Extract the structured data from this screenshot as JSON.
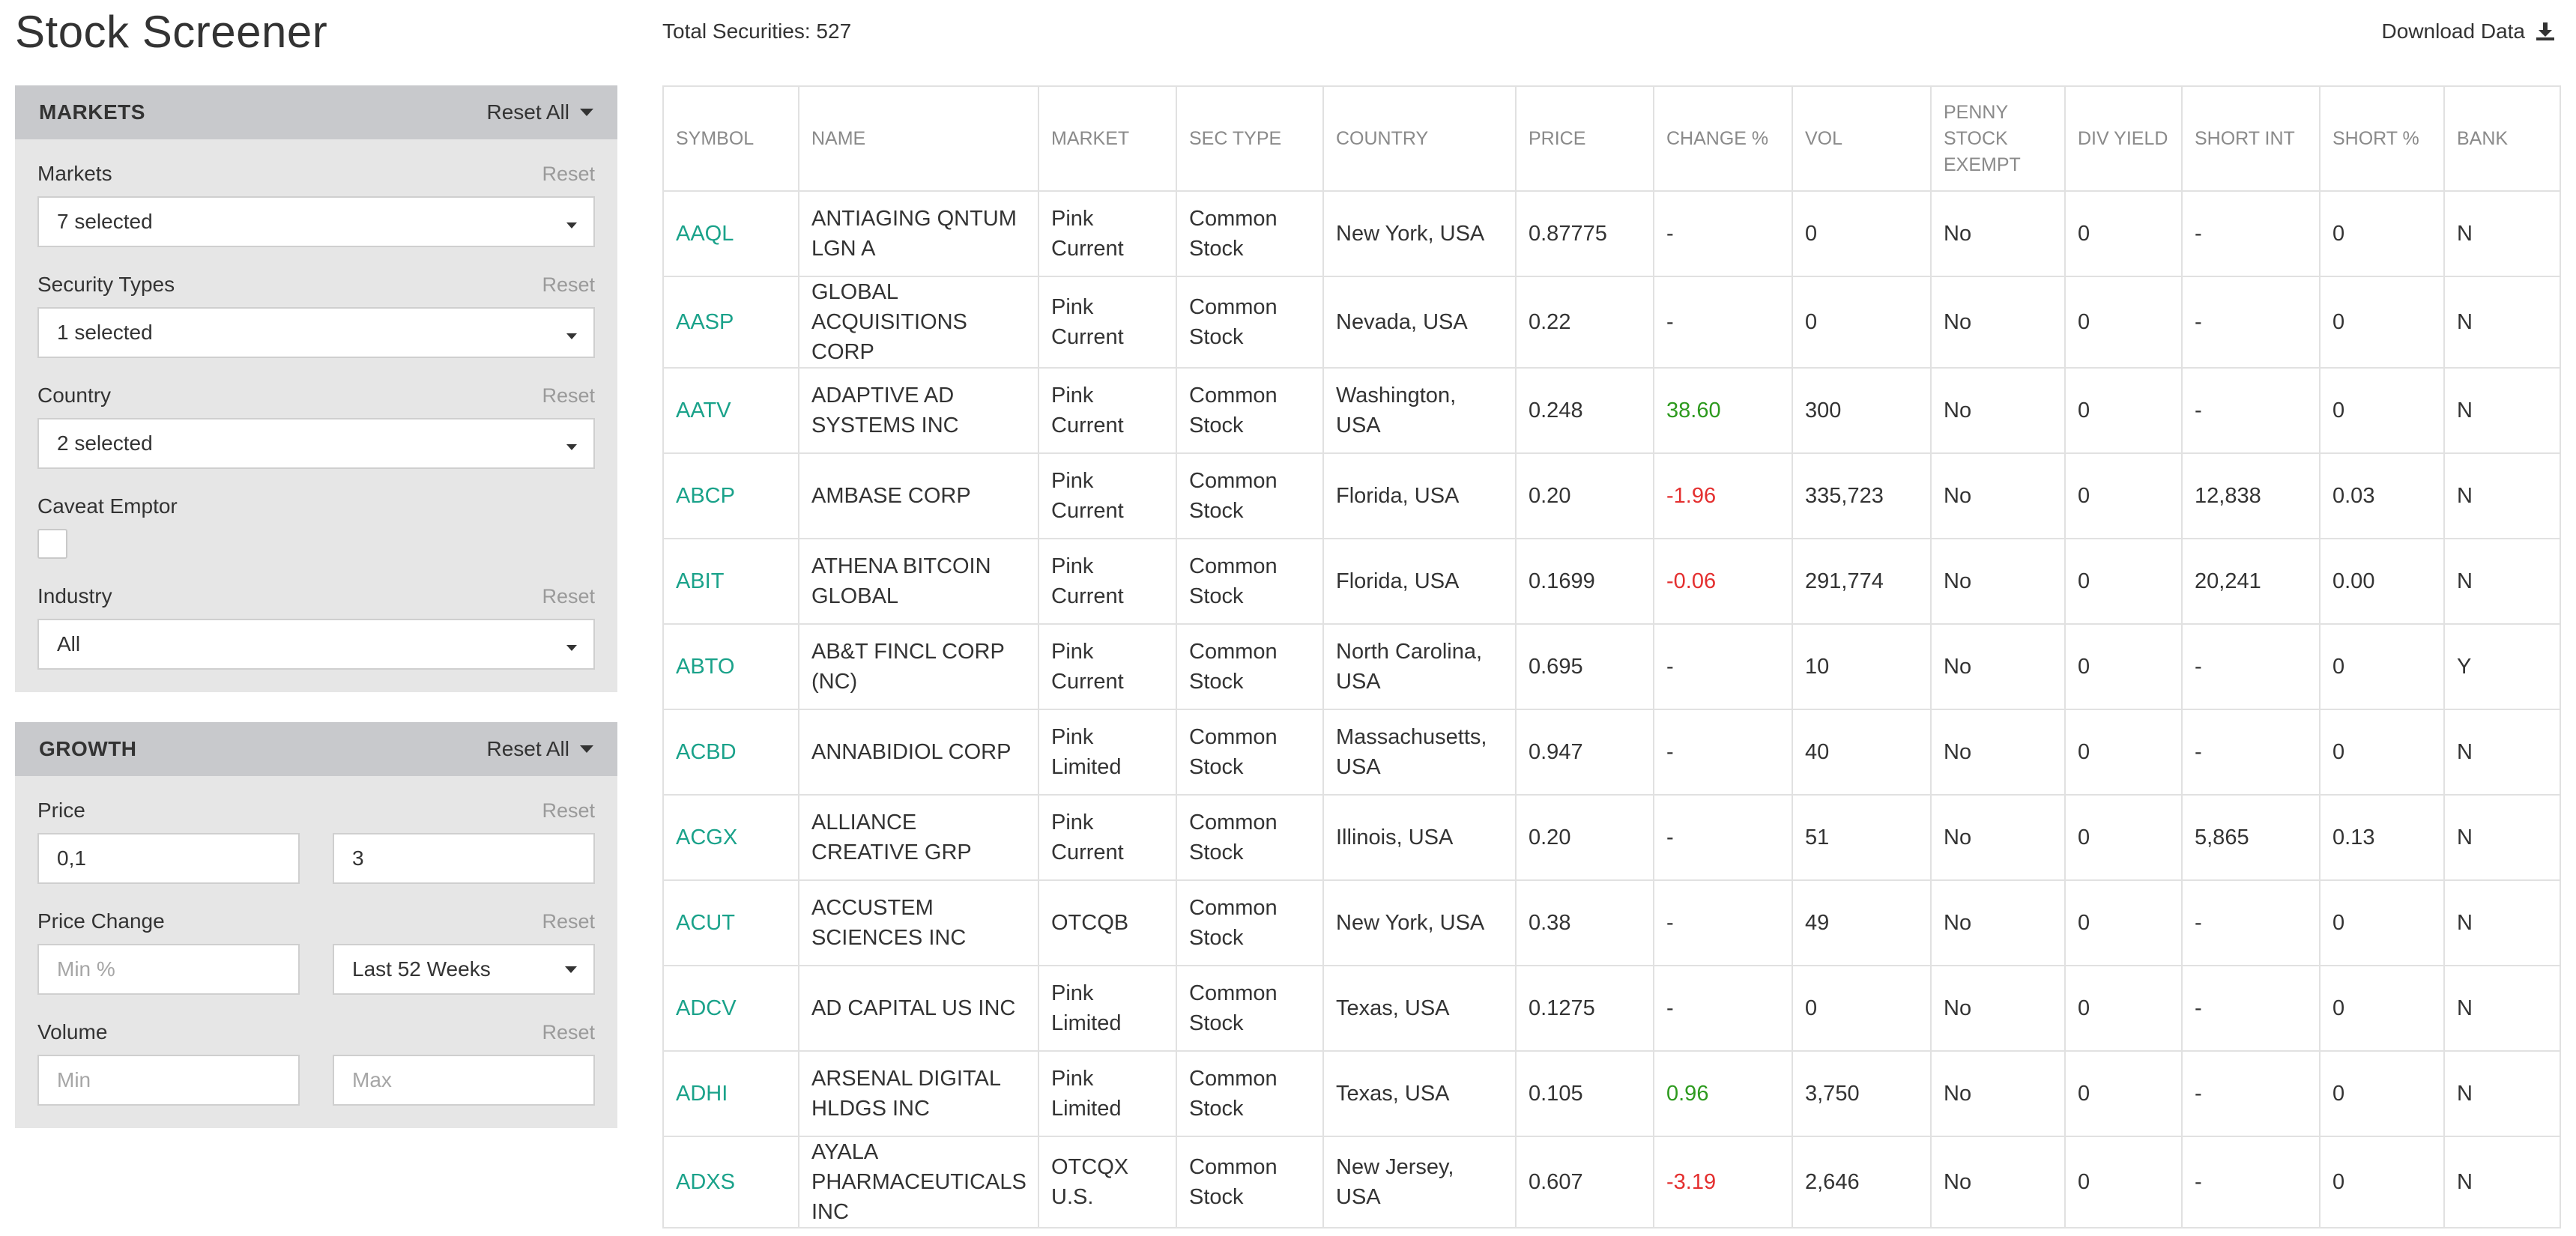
{
  "page_title": "Stock Screener",
  "total_label": "Total Securities: 527",
  "download_label": "Download Data",
  "colors": {
    "symbol": "#1aa28a",
    "positive": "#2d9a1e",
    "negative": "#e42f2f",
    "panel_header": "#c8c9cc",
    "panel_bg": "#e6e6e6"
  },
  "markets_panel": {
    "title": "MARKETS",
    "reset_all": "Reset All",
    "markets": {
      "label": "Markets",
      "reset": "Reset",
      "value": "7 selected"
    },
    "security_types": {
      "label": "Security Types",
      "reset": "Reset",
      "value": "1 selected"
    },
    "country": {
      "label": "Country",
      "reset": "Reset",
      "value": "2 selected"
    },
    "caveat_emptor": {
      "label": "Caveat Emptor",
      "checked": false
    },
    "industry": {
      "label": "Industry",
      "reset": "Reset",
      "value": "All"
    }
  },
  "growth_panel": {
    "title": "GROWTH",
    "reset_all": "Reset All",
    "price": {
      "label": "Price",
      "reset": "Reset",
      "min_value": "0,1",
      "max_value": "3"
    },
    "price_change": {
      "label": "Price Change",
      "reset": "Reset",
      "min_placeholder": "Min %",
      "period": "Last 52 Weeks"
    },
    "volume": {
      "label": "Volume",
      "reset": "Reset",
      "min_placeholder": "Min",
      "max_placeholder": "Max"
    }
  },
  "table": {
    "headers": [
      "SYMBOL",
      "NAME",
      "MARKET",
      "SEC TYPE",
      "COUNTRY",
      "PRICE",
      "CHANGE %",
      "VOL",
      "PENNY STOCK EXEMPT",
      "DIV YIELD",
      "SHORT INT",
      "SHORT %",
      "BANK"
    ],
    "rows": [
      {
        "symbol": "AAQL",
        "name": "ANTIAGING QNTUM LGN A",
        "market": "Pink Current",
        "sec_type": "Common Stock",
        "country": "New York, USA",
        "price": "0.87775",
        "change": "-",
        "change_dir": "none",
        "vol": "0",
        "penny": "No",
        "div": "0",
        "short_int": "-",
        "short_pct": "0",
        "bank": "N"
      },
      {
        "symbol": "AASP",
        "name": "GLOBAL ACQUISITIONS CORP",
        "market": "Pink Current",
        "sec_type": "Common Stock",
        "country": "Nevada, USA",
        "price": "0.22",
        "change": "-",
        "change_dir": "none",
        "vol": "0",
        "penny": "No",
        "div": "0",
        "short_int": "-",
        "short_pct": "0",
        "bank": "N"
      },
      {
        "symbol": "AATV",
        "name": "ADAPTIVE AD SYSTEMS INC",
        "market": "Pink Current",
        "sec_type": "Common Stock",
        "country": "Washington, USA",
        "price": "0.248",
        "change": "38.60",
        "change_dir": "pos",
        "vol": "300",
        "penny": "No",
        "div": "0",
        "short_int": "-",
        "short_pct": "0",
        "bank": "N"
      },
      {
        "symbol": "ABCP",
        "name": "AMBASE CORP",
        "market": "Pink Current",
        "sec_type": "Common Stock",
        "country": "Florida, USA",
        "price": "0.20",
        "change": "-1.96",
        "change_dir": "neg",
        "vol": "335,723",
        "penny": "No",
        "div": "0",
        "short_int": "12,838",
        "short_pct": "0.03",
        "bank": "N"
      },
      {
        "symbol": "ABIT",
        "name": "ATHENA BITCOIN GLOBAL",
        "market": "Pink Current",
        "sec_type": "Common Stock",
        "country": "Florida, USA",
        "price": "0.1699",
        "change": "-0.06",
        "change_dir": "neg",
        "vol": "291,774",
        "penny": "No",
        "div": "0",
        "short_int": "20,241",
        "short_pct": "0.00",
        "bank": "N"
      },
      {
        "symbol": "ABTO",
        "name": "AB&T FINCL CORP (NC)",
        "market": "Pink Current",
        "sec_type": "Common Stock",
        "country": "North Carolina, USA",
        "price": "0.695",
        "change": "-",
        "change_dir": "none",
        "vol": "10",
        "penny": "No",
        "div": "0",
        "short_int": "-",
        "short_pct": "0",
        "bank": "Y"
      },
      {
        "symbol": "ACBD",
        "name": "ANNABIDIOL CORP",
        "market": "Pink Limited",
        "sec_type": "Common Stock",
        "country": "Massachusetts, USA",
        "price": "0.947",
        "change": "-",
        "change_dir": "none",
        "vol": "40",
        "penny": "No",
        "div": "0",
        "short_int": "-",
        "short_pct": "0",
        "bank": "N"
      },
      {
        "symbol": "ACGX",
        "name": "ALLIANCE CREATIVE GRP",
        "market": "Pink Current",
        "sec_type": "Common Stock",
        "country": "Illinois, USA",
        "price": "0.20",
        "change": "-",
        "change_dir": "none",
        "vol": "51",
        "penny": "No",
        "div": "0",
        "short_int": "5,865",
        "short_pct": "0.13",
        "bank": "N"
      },
      {
        "symbol": "ACUT",
        "name": "ACCUSTEM SCIENCES INC",
        "market": "OTCQB",
        "sec_type": "Common Stock",
        "country": "New York, USA",
        "price": "0.38",
        "change": "-",
        "change_dir": "none",
        "vol": "49",
        "penny": "No",
        "div": "0",
        "short_int": "-",
        "short_pct": "0",
        "bank": "N"
      },
      {
        "symbol": "ADCV",
        "name": "AD CAPITAL US INC",
        "market": "Pink Limited",
        "sec_type": "Common Stock",
        "country": "Texas, USA",
        "price": "0.1275",
        "change": "-",
        "change_dir": "none",
        "vol": "0",
        "penny": "No",
        "div": "0",
        "short_int": "-",
        "short_pct": "0",
        "bank": "N"
      },
      {
        "symbol": "ADHI",
        "name": "ARSENAL DIGITAL HLDGS INC",
        "market": "Pink Limited",
        "sec_type": "Common Stock",
        "country": "Texas, USA",
        "price": "0.105",
        "change": "0.96",
        "change_dir": "pos",
        "vol": "3,750",
        "penny": "No",
        "div": "0",
        "short_int": "-",
        "short_pct": "0",
        "bank": "N"
      },
      {
        "symbol": "ADXS",
        "name": "AYALA PHARMACEUTICALS INC",
        "market": "OTCQX U.S.",
        "sec_type": "Common Stock",
        "country": "New Jersey, USA",
        "price": "0.607",
        "change": "-3.19",
        "change_dir": "neg",
        "vol": "2,646",
        "penny": "No",
        "div": "0",
        "short_int": "-",
        "short_pct": "0",
        "bank": "N"
      }
    ]
  }
}
